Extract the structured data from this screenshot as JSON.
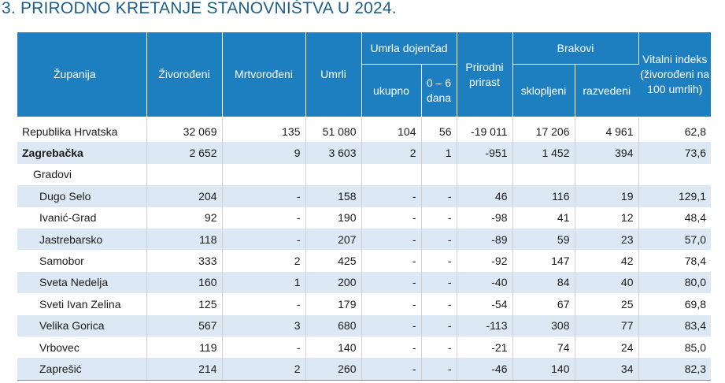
{
  "title": "3. PRIRODNO KRETANJE STANOVNIŠTVA U 2024.",
  "headers": {
    "zupanija": "Županija",
    "zivorodeni": "Živorođeni",
    "mrtvorodeni": "Mrtvorođeni",
    "umrli": "Umrli",
    "umrla_dojencad": "Umrla dojenčad",
    "ukupno": "ukupno",
    "dana_0_6": "0 – 6 dana",
    "prirodni_prirast": "Prirodni prirast",
    "brakovi": "Brakovi",
    "sklopljeni": "sklopljeni",
    "razvedeni": "razvedeni",
    "vitalni_indeks": "Vitalni indeks (živorođeni na 100 umrlih)"
  },
  "rows": [
    {
      "name": "Republika Hrvatska",
      "v": [
        "32 069",
        "135",
        "51 080",
        "104",
        "56",
        "-19 011",
        "17 206",
        "4 961",
        "62,8"
      ]
    },
    {
      "name": "Zagrebačka",
      "v": [
        "2 652",
        "9",
        "3 603",
        "2",
        "1",
        "-951",
        "1 452",
        "394",
        "73,6"
      ]
    },
    {
      "name": "Gradovi",
      "v": [
        "",
        "",
        "",
        "",
        "",
        "",
        "",
        "",
        ""
      ]
    },
    {
      "name": "Dugo Selo",
      "v": [
        "204",
        "-",
        "158",
        "-",
        "-",
        "46",
        "116",
        "19",
        "129,1"
      ]
    },
    {
      "name": "Ivanić-Grad",
      "v": [
        "92",
        "-",
        "190",
        "-",
        "-",
        "-98",
        "41",
        "12",
        "48,4"
      ]
    },
    {
      "name": "Jastrebarsko",
      "v": [
        "118",
        "-",
        "207",
        "-",
        "-",
        "-89",
        "59",
        "23",
        "57,0"
      ]
    },
    {
      "name": "Samobor",
      "v": [
        "333",
        "2",
        "425",
        "-",
        "-",
        "-92",
        "147",
        "42",
        "78,4"
      ]
    },
    {
      "name": "Sveta Nedelja",
      "v": [
        "160",
        "1",
        "200",
        "-",
        "-",
        "-40",
        "84",
        "40",
        "80,0"
      ]
    },
    {
      "name": "Sveti Ivan Zelina",
      "v": [
        "125",
        "-",
        "179",
        "-",
        "-",
        "-54",
        "67",
        "25",
        "69,8"
      ]
    },
    {
      "name": "Velika Gorica",
      "v": [
        "567",
        "3",
        "680",
        "-",
        "-",
        "-113",
        "308",
        "77",
        "83,4"
      ]
    },
    {
      "name": "Vrbovec",
      "v": [
        "119",
        "-",
        "140",
        "-",
        "-",
        "-21",
        "74",
        "24",
        "85,0"
      ]
    },
    {
      "name": "Zaprešić",
      "v": [
        "214",
        "2",
        "260",
        "-",
        "-",
        "-46",
        "140",
        "34",
        "82,3"
      ]
    }
  ]
}
